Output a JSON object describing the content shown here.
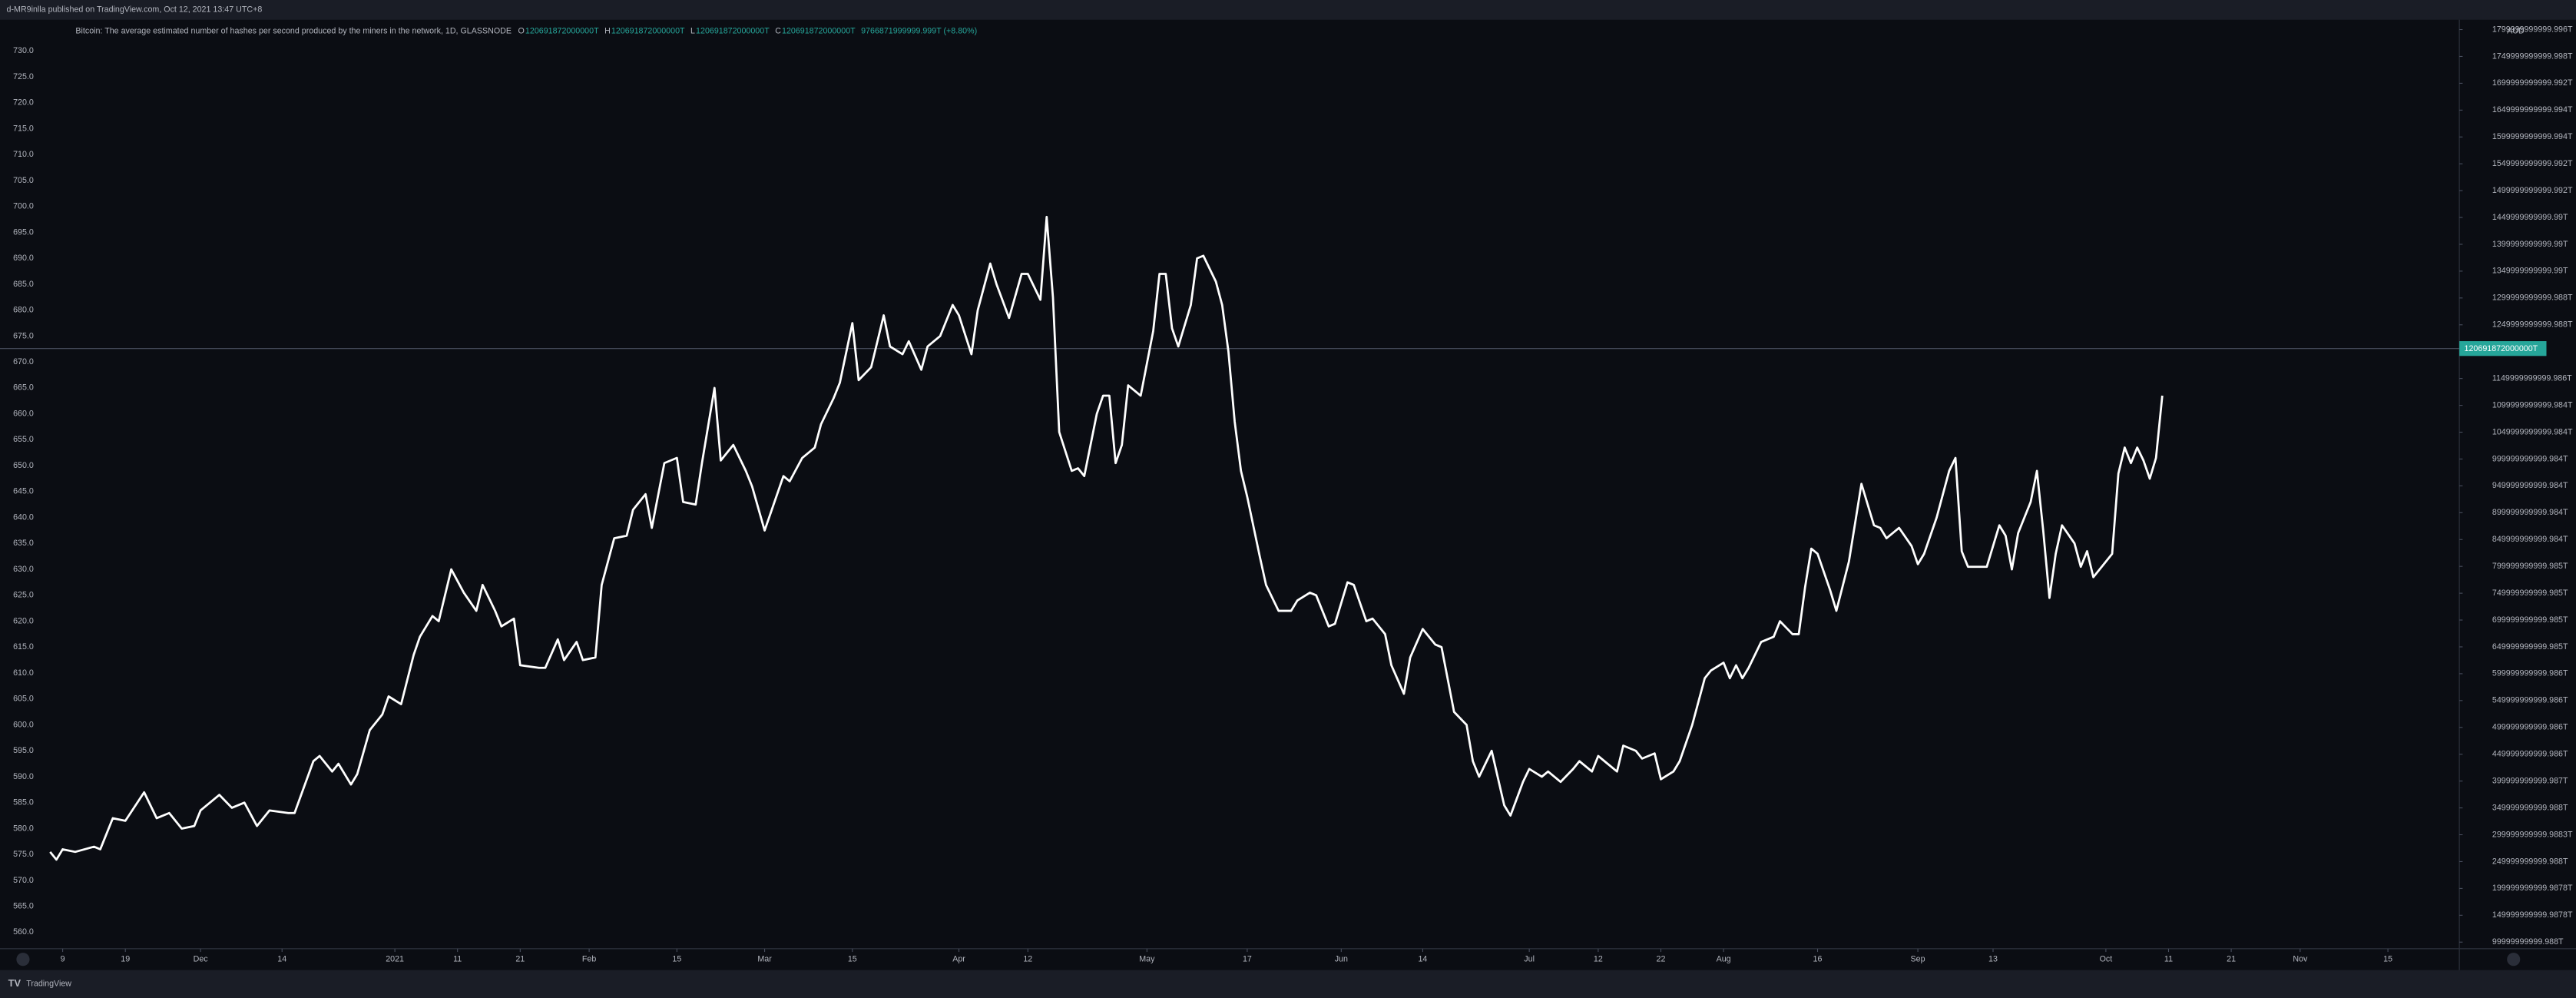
{
  "header": {
    "published": "d-MR9inlla published on TradingView.com, Oct 12, 2021 13:47 UTC+8"
  },
  "footer": {
    "brand": "TradingView"
  },
  "chart_data": {
    "type": "line",
    "legend": {
      "title": "Bitcoin: The average estimated number of hashes per second produced by the miners in the network, 1D, GLASSNODE",
      "ohlc": [
        {
          "key": "O",
          "value": "120691872000000T"
        },
        {
          "key": "H",
          "value": "120691872000000T"
        },
        {
          "key": "L",
          "value": "120691872000000T"
        },
        {
          "key": "C",
          "value": "120691872000000T"
        }
      ],
      "change": "9766871999999.999T (+8.80%)"
    },
    "last_value_label": "120691872000000T",
    "currency": "AUD",
    "series": [
      {
        "color": "#ffffff",
        "x": [
          0,
          1,
          2,
          4,
          7,
          8,
          10,
          12,
          15,
          17,
          19,
          21,
          23,
          24,
          27,
          29,
          31,
          33,
          35,
          38,
          39,
          42,
          43,
          45,
          46,
          48,
          49,
          51,
          53,
          54,
          56,
          58,
          59,
          61,
          62,
          64,
          66,
          68,
          69,
          71,
          72,
          74,
          75,
          78,
          79,
          81,
          82,
          84,
          85,
          87,
          88,
          90,
          92,
          93,
          95,
          96,
          98,
          100,
          101,
          103,
          104,
          106,
          107,
          109,
          111,
          112,
          114,
          115,
          117,
          118,
          120,
          122,
          123,
          125,
          126,
          128,
          129,
          131,
          133,
          134,
          136,
          137,
          139,
          140,
          142,
          144,
          145,
          147,
          148,
          150,
          151,
          153,
          155,
          156,
          158,
          159,
          160,
          161,
          163,
          164,
          165,
          167,
          168,
          169,
          170,
          171,
          172,
          174,
          176,
          177,
          178,
          179,
          180,
          182,
          183,
          184,
          186,
          187,
          188,
          189,
          190,
          191,
          193,
          194,
          196,
          198,
          199,
          201,
          202,
          204,
          205,
          207,
          208,
          210,
          211,
          213,
          214,
          216,
          217,
          219,
          221,
          222,
          224,
          226,
          227,
          228,
          230,
          232,
          233,
          235,
          236,
          238,
          239,
          241,
          243,
          244,
          246,
          247,
          248,
          250,
          251,
          253,
          254,
          256,
          257,
          259,
          260,
          262,
          264,
          265,
          267,
          268,
          269,
          270,
          271,
          273,
          275,
          276,
          278,
          279,
          280,
          281,
          282,
          284,
          285,
          287,
          288,
          289,
          291,
          292,
          293,
          295,
          297,
          298,
          299,
          301,
          303,
          304,
          305,
          306,
          308,
          309,
          311,
          312,
          313,
          314,
          316,
          317,
          318,
          319,
          320,
          321,
          323,
          324,
          325,
          326,
          328,
          329,
          330,
          331,
          332,
          333,
          334,
          335,
          336,
          337
        ],
        "values": [
          575.5,
          574,
          576,
          575.5,
          576.5,
          576,
          582,
          581.5,
          587,
          582,
          583,
          580,
          580.5,
          583.5,
          586.5,
          584,
          585,
          580.5,
          583.5,
          583,
          583,
          593,
          594,
          591,
          592.5,
          588.5,
          590.5,
          599,
          602,
          605.5,
          604,
          613.5,
          617,
          621,
          620,
          630,
          625.5,
          622,
          627,
          622,
          619,
          620.5,
          611.5,
          611,
          611,
          616.5,
          612.5,
          616,
          612.5,
          613,
          627,
          636,
          636.5,
          641.5,
          644.5,
          638,
          650.5,
          651.5,
          643,
          642.5,
          650.5,
          665,
          651,
          654,
          649,
          646,
          637.5,
          641,
          648,
          647,
          651.5,
          653.5,
          658,
          663,
          666,
          677.5,
          666.5,
          669,
          679,
          673,
          671.5,
          674,
          668.5,
          673,
          675,
          681,
          679,
          671.5,
          680,
          689,
          685,
          678.5,
          687,
          687,
          682,
          698,
          682.5,
          656.5,
          649,
          649.5,
          648,
          660,
          663.5,
          663.5,
          650.5,
          654,
          665.5,
          663.5,
          676,
          687,
          687,
          676.5,
          673,
          681,
          690,
          690.5,
          685.5,
          681,
          672,
          658.5,
          649,
          644,
          632.5,
          627,
          622,
          622,
          624,
          625.5,
          625,
          619,
          619.5,
          627.5,
          627,
          620,
          620.5,
          617.5,
          611.5,
          606,
          613,
          618.5,
          615.5,
          615,
          602.5,
          600,
          593,
          590,
          595,
          584.5,
          582.5,
          589,
          591.5,
          590,
          591,
          589,
          591.5,
          593,
          591,
          594,
          593,
          591,
          596,
          595,
          593.5,
          594.5,
          589.5,
          591,
          593,
          600,
          609,
          610.5,
          612,
          609,
          611.5,
          609,
          611,
          616,
          617,
          620,
          617.5,
          617.5,
          626.5,
          634,
          633,
          626,
          622,
          631.5,
          639,
          646.5,
          638.5,
          638,
          636,
          638,
          634.5,
          631,
          633,
          640,
          649,
          651.5,
          633.5,
          630.5,
          630.5,
          630.5,
          638.5,
          636.5,
          630,
          637,
          643,
          649,
          637.5,
          624.5,
          633,
          638.5,
          635,
          630.5,
          633.5,
          628.5,
          631.5,
          633,
          648.5,
          653.5,
          650.5,
          653.5,
          651,
          647.5,
          651.5,
          663.5
        ]
      }
    ],
    "xlim": [
      -8,
      384.4
    ],
    "xticks": [
      {
        "value": 2,
        "label": "9"
      },
      {
        "value": 12,
        "label": "19"
      },
      {
        "value": 24,
        "label": "Dec"
      },
      {
        "value": 37,
        "label": "14"
      },
      {
        "value": 55,
        "label": "2021"
      },
      {
        "value": 65,
        "label": "11"
      },
      {
        "value": 75,
        "label": "21"
      },
      {
        "value": 86,
        "label": "Feb"
      },
      {
        "value": 100,
        "label": "15"
      },
      {
        "value": 114,
        "label": "Mar"
      },
      {
        "value": 128,
        "label": "15"
      },
      {
        "value": 145,
        "label": "Apr"
      },
      {
        "value": 156,
        "label": "12"
      },
      {
        "value": 175,
        "label": "May"
      },
      {
        "value": 191,
        "label": "17"
      },
      {
        "value": 206,
        "label": "Jun"
      },
      {
        "value": 219,
        "label": "14"
      },
      {
        "value": 236,
        "label": "Jul"
      },
      {
        "value": 247,
        "label": "12"
      },
      {
        "value": 257,
        "label": "22"
      },
      {
        "value": 267,
        "label": "Aug"
      },
      {
        "value": 282,
        "label": "16"
      },
      {
        "value": 298,
        "label": "Sep"
      },
      {
        "value": 310,
        "label": "13"
      },
      {
        "value": 328,
        "label": "Oct"
      },
      {
        "value": 338,
        "label": "11"
      },
      {
        "value": 348,
        "label": "21"
      },
      {
        "value": 359,
        "label": "Nov"
      },
      {
        "value": 373,
        "label": "15"
      }
    ],
    "ylim": [
      556.83,
      735.71
    ],
    "yticks": [
      {
        "value": 730,
        "label": "730.0"
      },
      {
        "value": 725,
        "label": "725.0"
      },
      {
        "value": 720,
        "label": "720.0"
      },
      {
        "value": 715,
        "label": "715.0"
      },
      {
        "value": 710,
        "label": "710.0"
      },
      {
        "value": 705,
        "label": "705.0"
      },
      {
        "value": 700,
        "label": "700.0"
      },
      {
        "value": 695,
        "label": "695.0"
      },
      {
        "value": 690,
        "label": "690.0"
      },
      {
        "value": 685,
        "label": "685.0"
      },
      {
        "value": 680,
        "label": "680.0"
      },
      {
        "value": 675,
        "label": "675.0"
      },
      {
        "value": 670,
        "label": "670.0"
      },
      {
        "value": 665,
        "label": "665.0"
      },
      {
        "value": 660,
        "label": "660.0"
      },
      {
        "value": 655,
        "label": "655.0"
      },
      {
        "value": 650,
        "label": "650.0"
      },
      {
        "value": 645,
        "label": "645.0"
      },
      {
        "value": 640,
        "label": "640.0"
      },
      {
        "value": 635,
        "label": "635.0"
      },
      {
        "value": 630,
        "label": "630.0"
      },
      {
        "value": 625,
        "label": "625.0"
      },
      {
        "value": 620,
        "label": "620.0"
      },
      {
        "value": 615,
        "label": "615.0"
      },
      {
        "value": 610,
        "label": "610.0"
      },
      {
        "value": 605,
        "label": "605.0"
      },
      {
        "value": 600,
        "label": "600.0"
      },
      {
        "value": 595,
        "label": "595.0"
      },
      {
        "value": 590,
        "label": "590.0"
      },
      {
        "value": 585,
        "label": "585.0"
      },
      {
        "value": 580,
        "label": "580.0"
      },
      {
        "value": 575,
        "label": "575.0"
      },
      {
        "value": 570,
        "label": "570.0"
      },
      {
        "value": 565,
        "label": "565.0"
      },
      {
        "value": 560,
        "label": "560.0"
      }
    ],
    "y2lim": [
      87748000000,
      1815315000000
    ],
    "y2ticks": [
      {
        "value": 1799999999999.996,
        "label": "1799999999999.996T"
      },
      {
        "value": 1749999999999.998,
        "label": "1749999999999.998T"
      },
      {
        "value": 1699999999999.992,
        "label": "1699999999999.992T"
      },
      {
        "value": 1649999999999.994,
        "label": "1649999999999.994T"
      },
      {
        "value": 1599999999999.994,
        "label": "1599999999999.994T"
      },
      {
        "value": 1549999999999.992,
        "label": "1549999999999.992T"
      },
      {
        "value": 1499999999999.992,
        "label": "1499999999999.992T"
      },
      {
        "value": 1449999999999.99,
        "label": "1449999999999.99T"
      },
      {
        "value": 1399999999999.99,
        "label": "1399999999999.99T"
      },
      {
        "value": 1349999999999.99,
        "label": "1349999999999.99T"
      },
      {
        "value": 1299999999999.988,
        "label": "1299999999999.988T"
      },
      {
        "value": 1249999999999.988,
        "label": "1249999999999.988T"
      },
      {
        "value": 1149999999999.986,
        "label": "1149999999999.986T"
      },
      {
        "value": 1099999999999.984,
        "label": "1099999999999.984T"
      },
      {
        "value": 1049999999999.984,
        "label": "1049999999999.984T"
      },
      {
        "value": 999999999999.984,
        "label": "999999999999.984T"
      },
      {
        "value": 949999999999.984,
        "label": "949999999999.984T"
      },
      {
        "value": 899999999999.984,
        "label": "899999999999.984T"
      },
      {
        "value": 849999999999.984,
        "label": "849999999999.984T"
      },
      {
        "value": 799999999999.985,
        "label": "799999999999.985T"
      },
      {
        "value": 749999999999.985,
        "label": "749999999999.985T"
      },
      {
        "value": 699999999999.985,
        "label": "699999999999.985T"
      },
      {
        "value": 649999999999.985,
        "label": "649999999999.985T"
      },
      {
        "value": 599999999999.986,
        "label": "599999999999.986T"
      },
      {
        "value": 549999999999.986,
        "label": "549999999999.986T"
      },
      {
        "value": 499999999999.986,
        "label": "499999999999.986T"
      },
      {
        "value": 449999999999.986,
        "label": "449999999999.986T"
      },
      {
        "value": 399999999999.987,
        "label": "399999999999.987T"
      },
      {
        "value": 349999999999.988,
        "label": "349999999999.988T"
      },
      {
        "value": 299999999999.9883,
        "label": "299999999999.9883T"
      },
      {
        "value": 249999999999.988,
        "label": "249999999999.988T"
      },
      {
        "value": 199999999999.9878,
        "label": "199999999999.9878T"
      },
      {
        "value": 149999999999.9878,
        "label": "149999999999.9878T"
      },
      {
        "value": 99999999999.988,
        "label": "99999999999.988T"
      }
    ],
    "grid": false
  }
}
